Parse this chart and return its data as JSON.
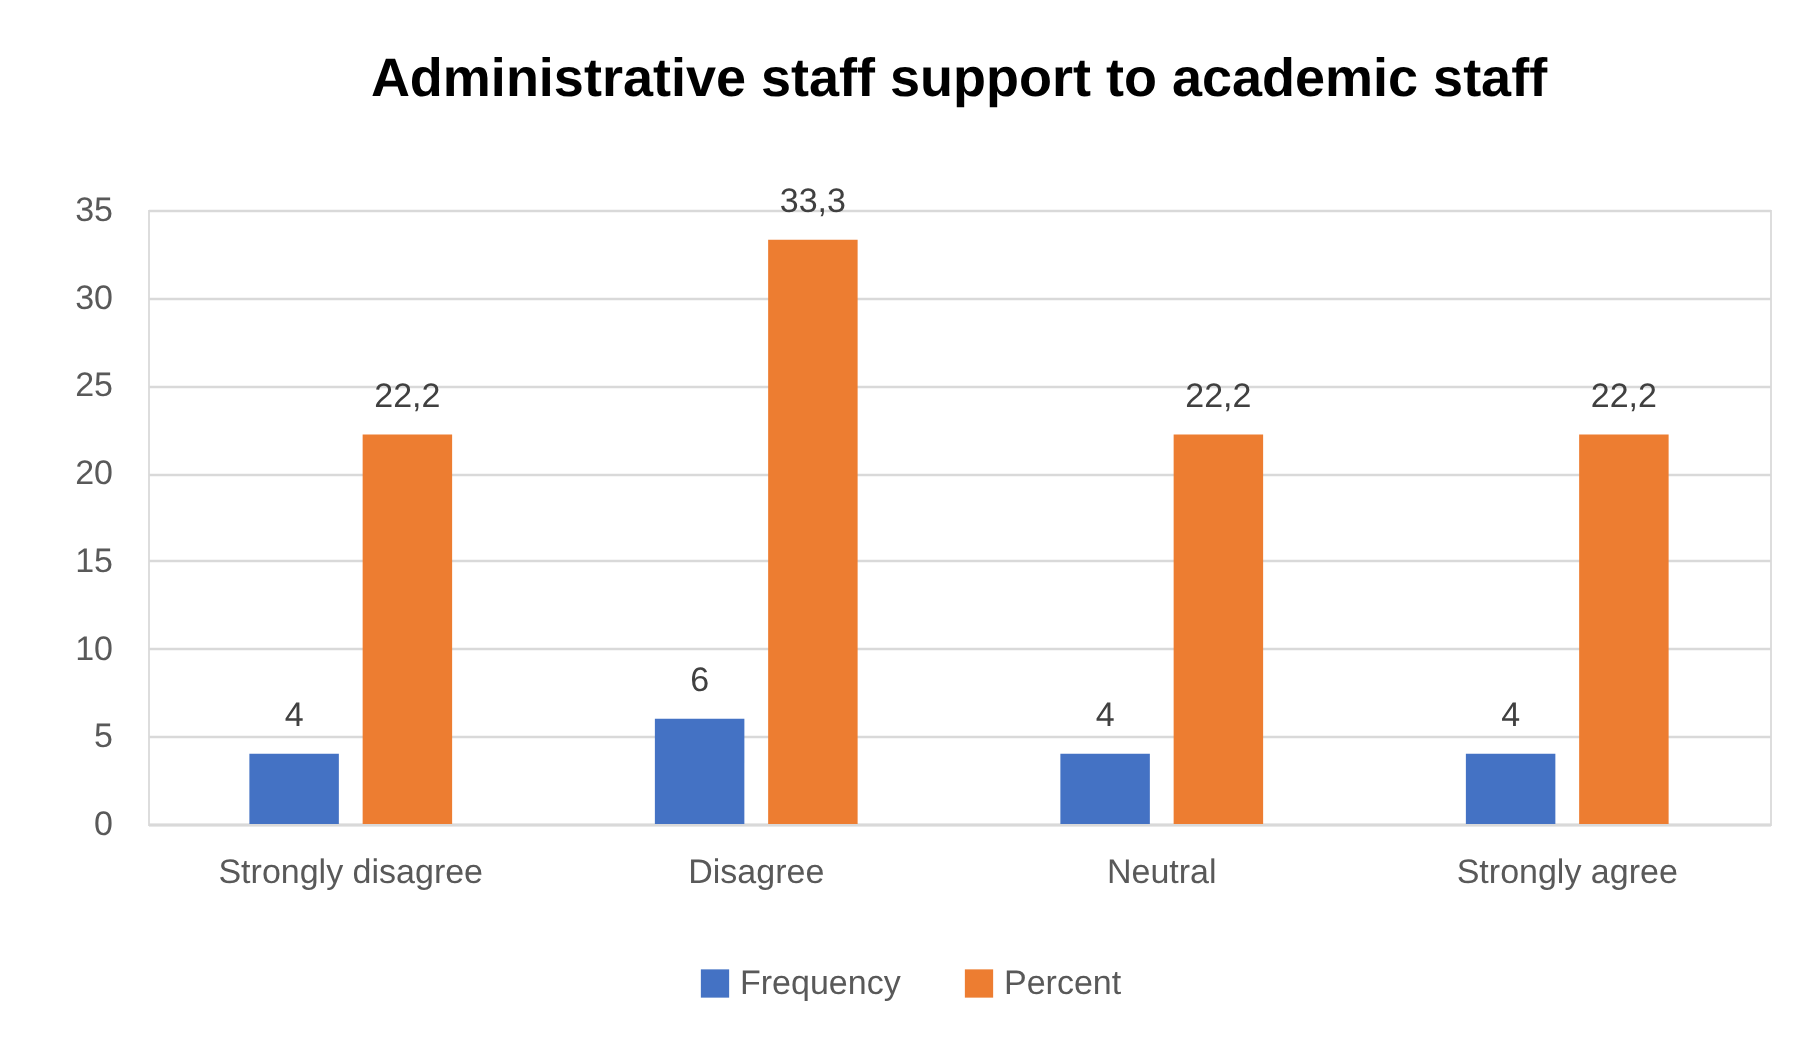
{
  "chart_data": {
    "type": "bar",
    "title": "Administrative staff support to academic staff",
    "categories": [
      "Strongly disagree",
      "Disagree",
      "Neutral",
      "Strongly agree"
    ],
    "series": [
      {
        "name": "Frequency",
        "color": "#4472c4",
        "values": [
          4,
          6,
          4,
          4
        ],
        "value_labels": [
          "4",
          "6",
          "4",
          "4"
        ]
      },
      {
        "name": "Percent",
        "color": "#ed7d31",
        "values": [
          22.2,
          33.3,
          22.2,
          22.2
        ],
        "value_labels": [
          "22,2",
          "33,3",
          "22,2",
          "22,2"
        ]
      }
    ],
    "ylim": [
      0,
      35
    ],
    "yticks": [
      0,
      5,
      10,
      15,
      20,
      25,
      30,
      35
    ],
    "grid": "y",
    "legend": "bottom"
  }
}
